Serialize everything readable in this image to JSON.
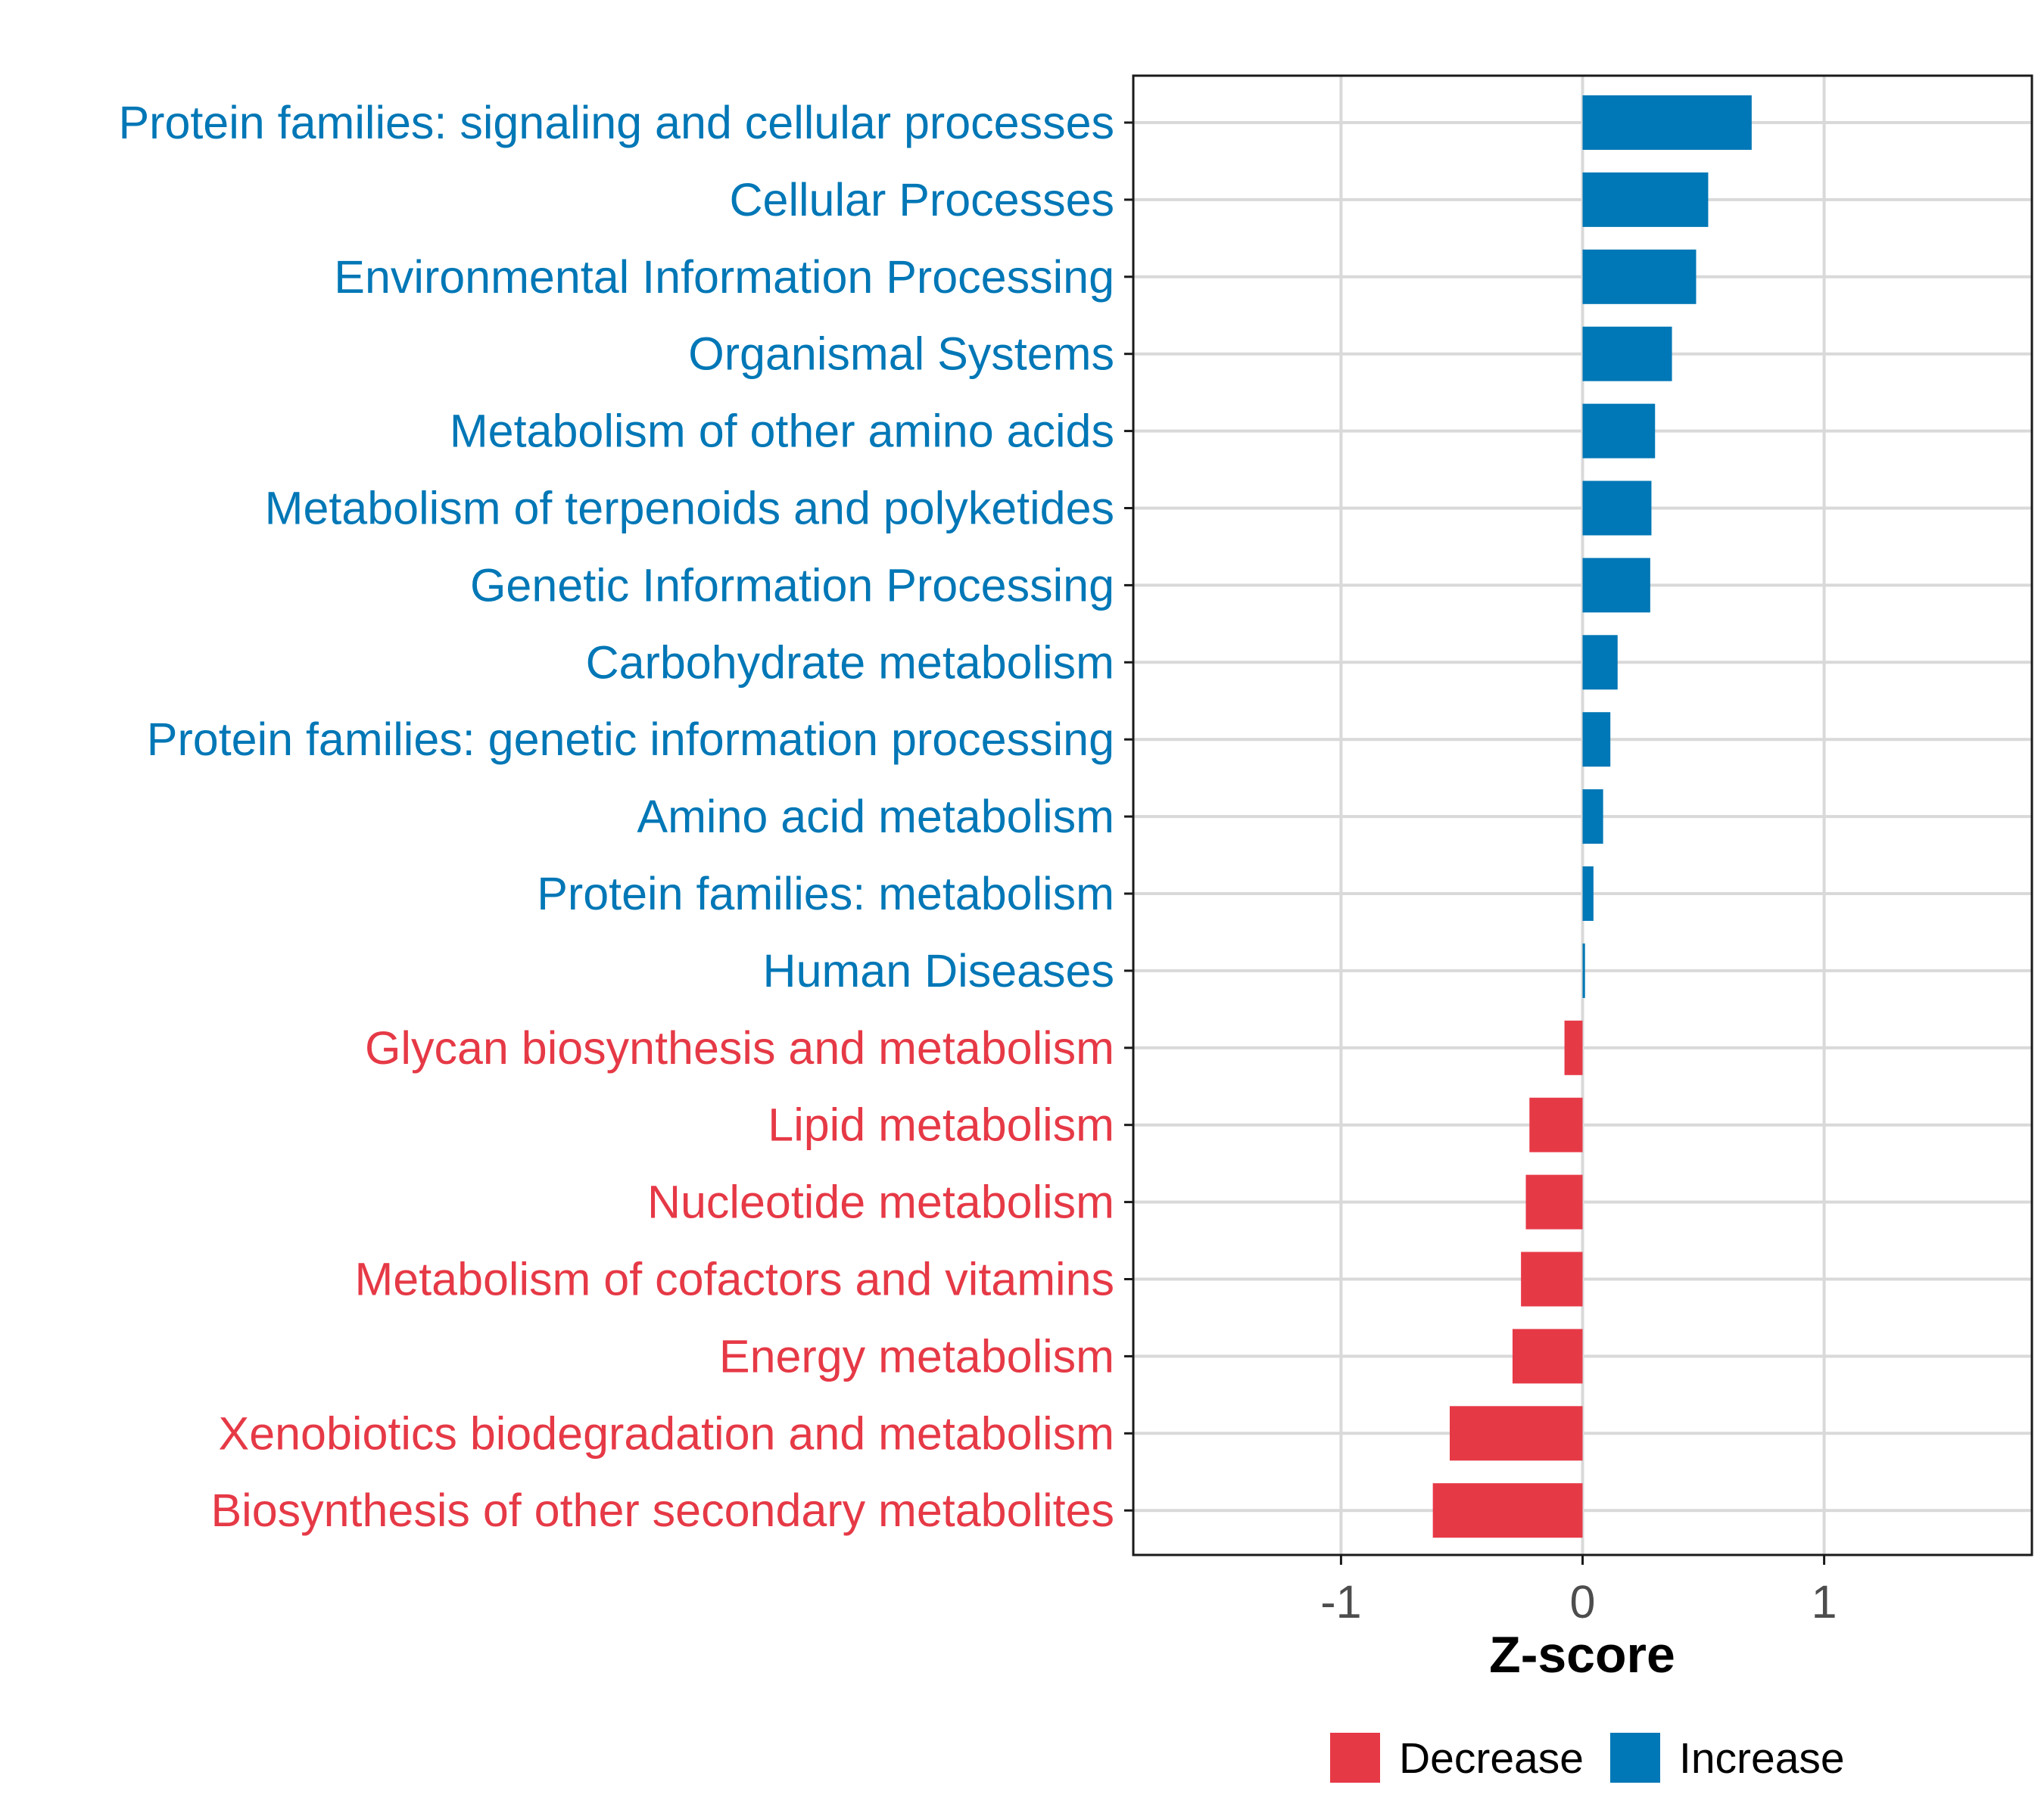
{
  "colors": {
    "decrease": "#E63946",
    "increase": "#0077B6",
    "grid": "#d9d9d9",
    "axis": "#1a1a1a",
    "tick_text": "#4d4d4d"
  },
  "chart_data": {
    "type": "bar",
    "orientation": "horizontal",
    "title": "",
    "xlabel": "Z-score",
    "ylabel": "",
    "xlim": [
      -1.86,
      1.86
    ],
    "x_ticks": [
      -1,
      0,
      1
    ],
    "x_tick_labels": [
      "-1",
      "0",
      "1"
    ],
    "grid": true,
    "legend_position": "bottom",
    "legend": [
      {
        "name": "Decrease",
        "color_key": "decrease"
      },
      {
        "name": "Increase",
        "color_key": "increase"
      }
    ],
    "categories": [
      "Protein families: signaling and cellular processes",
      "Cellular Processes",
      "Environmental Information Processing",
      "Organismal Systems",
      "Metabolism of other amino acids",
      "Metabolism of terpenoids and polyketides",
      "Genetic Information Processing",
      "Carbohydrate metabolism",
      "Protein families: genetic information processing",
      "Amino acid metabolism",
      "Protein families: metabolism",
      "Human Diseases",
      "Glycan biosynthesis and metabolism",
      "Lipid metabolism",
      "Nucleotide metabolism",
      "Metabolism of cofactors and vitamins",
      "Energy metabolism",
      "Xenobiotics biodegradation and metabolism",
      "Biosynthesis of other secondary metabolites"
    ],
    "values": [
      0.7,
      0.52,
      0.47,
      0.37,
      0.3,
      0.285,
      0.28,
      0.145,
      0.115,
      0.085,
      0.045,
      0.01,
      -0.075,
      -0.22,
      -0.235,
      -0.255,
      -0.29,
      -0.55,
      -0.62
    ],
    "groups": [
      "Increase",
      "Increase",
      "Increase",
      "Increase",
      "Increase",
      "Increase",
      "Increase",
      "Increase",
      "Increase",
      "Increase",
      "Increase",
      "Increase",
      "Decrease",
      "Decrease",
      "Decrease",
      "Decrease",
      "Decrease",
      "Decrease",
      "Decrease"
    ]
  }
}
